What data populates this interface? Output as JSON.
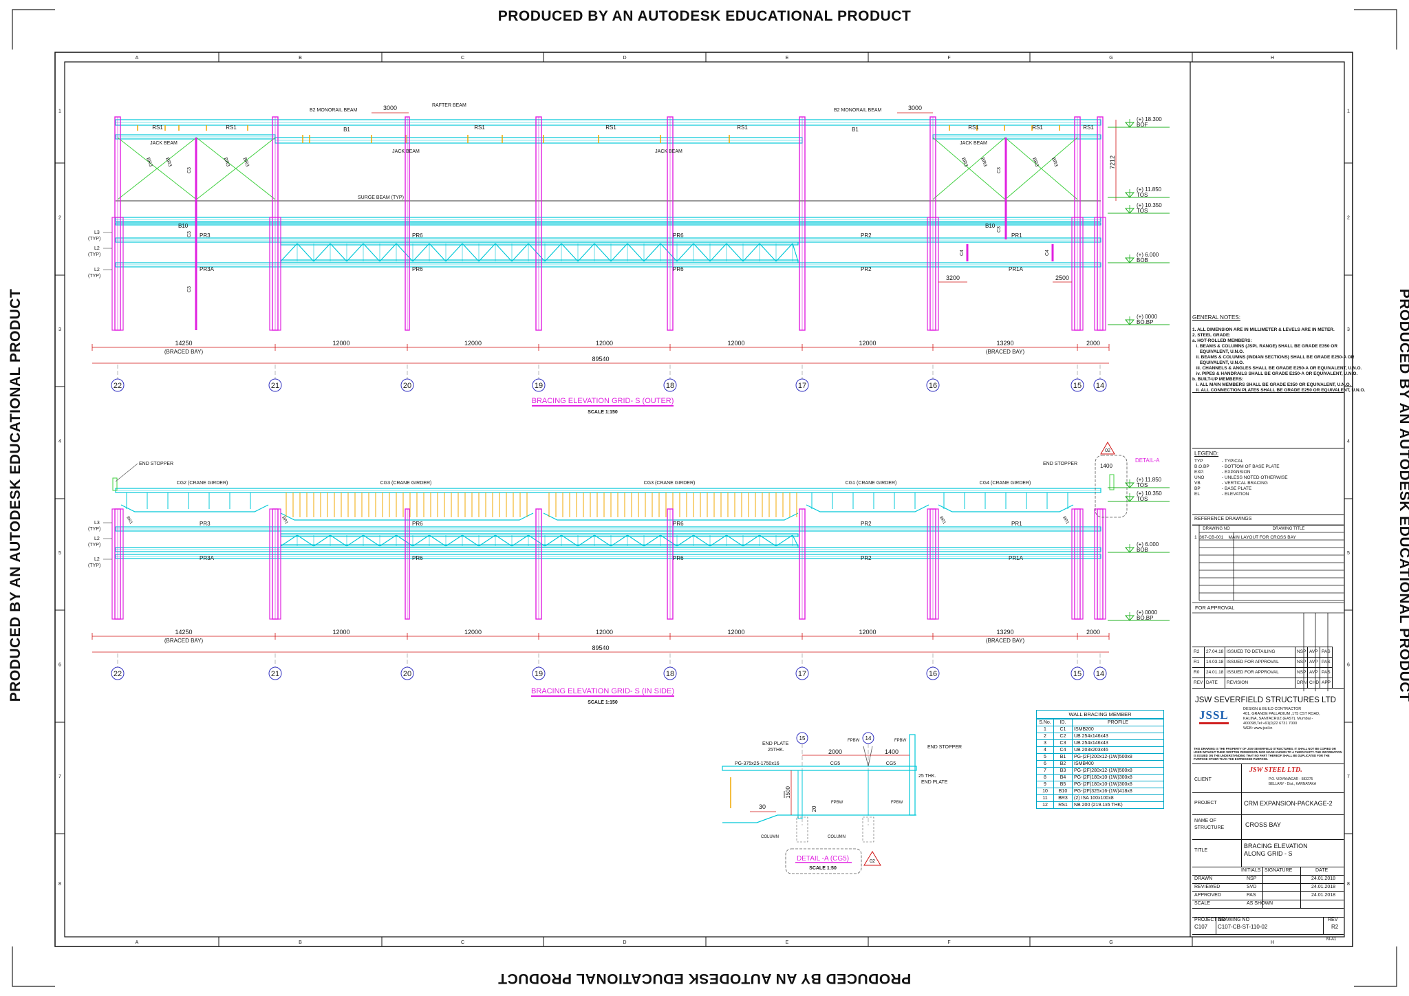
{
  "watermark": "PRODUCED BY AN AUTODESK EDUCATIONAL PRODUCT",
  "grid_columns": [
    "A",
    "B",
    "C",
    "D",
    "E",
    "F",
    "G",
    "H"
  ],
  "grid_rows": [
    "1",
    "2",
    "3",
    "4",
    "5",
    "6",
    "7",
    "8"
  ],
  "colors": {
    "column": "#e020e0",
    "beam": "#00c8d8",
    "bracing": "#40d040",
    "stiffener": "#f0a800",
    "dim": "#d01010",
    "level": "#20b020"
  },
  "elev_outer": {
    "title": "BRACING ELEVATION GRID- S (OUTER)",
    "scale": "SCALE 1:150",
    "labels": {
      "b2_left": "B2 MONORAIL BEAM",
      "rafter": "RAFTER BEAM",
      "b2_right": "B2 MONORAIL BEAM",
      "dim3000": "3000",
      "rs1": "RS1",
      "b1": "B1",
      "jack": "JACK BEAM",
      "br3": "BR3",
      "c3": "C3",
      "surge": "SURGE BEAM (TYP)",
      "b10": "B10",
      "pr3": "PR3",
      "pr6": "PR6",
      "pr2": "PR2",
      "pr1": "PR1",
      "pr3a": "PR3A",
      "pr1a": "PR1A",
      "c4": "C4",
      "d3200": "3200",
      "d2500": "2500",
      "d7212": "7212",
      "l3": "L3",
      "l2": "L2",
      "typ": "(TYP)"
    },
    "levels": [
      {
        "val": "(+) 18.300",
        "tag": "BOF"
      },
      {
        "val": "(+) 11.850",
        "tag": "TOS"
      },
      {
        "val": "(+) 10.350",
        "tag": "TOS"
      },
      {
        "val": "(+) 6.000",
        "tag": "BOB"
      },
      {
        "val": "(+) 0000",
        "tag": "BO.BP"
      }
    ]
  },
  "elev_inside": {
    "title": "BRACING ELEVATION GRID- S (IN SIDE)",
    "scale": "SCALE 1:150",
    "labels": {
      "end_stopper": "END STOPPER",
      "cg2": "CG2 (CRANE GIRDER)",
      "cg3": "CG3 (CRANE GIRDER)",
      "cg1": "CG1 (CRANE GIRDER)",
      "cg4": "CG4 (CRANE GIRDER)",
      "detail": "DETAIL-A",
      "d1400": "1400",
      "ref02": "02"
    },
    "levels": [
      {
        "val": "(+) 11.850",
        "tag": "TOS"
      },
      {
        "val": "(+) 10.350",
        "tag": "TOS"
      },
      {
        "val": "(+) 6.000",
        "tag": "BOB"
      },
      {
        "val": "(+) 0000",
        "tag": "BO.BP"
      }
    ]
  },
  "bay_dims": [
    "14250",
    "12000",
    "12000",
    "12000",
    "12000",
    "12000",
    "13290",
    "2000"
  ],
  "braced_bay": "(BRACED  BAY)",
  "total_dim": "89540",
  "grid_bubbles": [
    "22",
    "21",
    "20",
    "19",
    "18",
    "17",
    "16",
    "15",
    "14"
  ],
  "detail_a": {
    "title": "DETAIL -A (CG5)",
    "scale": "SCALE 1:50",
    "ref": "02",
    "labels": {
      "end_plate": "END PLATE",
      "thk": "25THK.",
      "pg": "PG-375x25-1750x16",
      "cg5": "CG5",
      "fpbw": "FPBW",
      "end_stopper": "END STOPPER",
      "thk2": "25 THK.",
      "end_plate2": "END PLATE",
      "column": "COLUMN",
      "d2000": "2000",
      "d1400": "1400",
      "d1500": "1500",
      "d30": "30",
      "d20": "20",
      "g15": "15",
      "g14": "14"
    }
  },
  "wall_bracing": {
    "title": "WALL BRACING MEMBER",
    "headers": [
      "S.No.",
      "ID.",
      "PROFILE"
    ],
    "rows": [
      [
        "1",
        "C1",
        "ISMB200"
      ],
      [
        "2",
        "C2",
        "UB 254x146x43"
      ],
      [
        "3",
        "C3",
        "UB 254x146x43"
      ],
      [
        "4",
        "C4",
        "UB 203x203x46"
      ],
      [
        "5",
        "B1",
        "PG-(2F)200x12-(1W)500x8"
      ],
      [
        "6",
        "B2",
        "ISMB400"
      ],
      [
        "7",
        "B3",
        "PG-(2F)280x12-(1W)500x8"
      ],
      [
        "8",
        "B4",
        "PG-(2F)180x10-(1W)300x8"
      ],
      [
        "9",
        "B5",
        "PG-(2F)180x10-(1W)300x8"
      ],
      [
        "10",
        "B10",
        "PG-(2F)325x16-(1W)418x8"
      ],
      [
        "11",
        "BR3",
        "(2) ISA 100x100x8"
      ],
      [
        "12",
        "RS1",
        "NB 200 (219.1x6 THK)"
      ]
    ]
  },
  "general_notes": {
    "title": "GENERAL NOTES:",
    "lines": [
      "1. ALL DIMENSION ARE IN MILLIMETER & LEVELS ARE IN METER.",
      "2. STEEL GRADE:",
      "a. HOT-ROLLED MEMBERS:",
      "   i. BEAMS & COLUMNS (JSPL RANGE) SHALL BE GRADE E350 OR",
      "      EQUIVALENT, U.N.O.",
      "   ii. BEAMS & COLUMNS (INDIAN SECTIONS) SHALL BE GRADE E250-A OR",
      "      EQUIVALENT, U.N.O.",
      "   iii. CHANNELS & ANGLES SHALL BE GRADE E250-A OR EQUIVALENT, U.N.O.",
      "   iv. PIPES & HANDRAILS SHALL BE GRADE E250-A OR EQUIVALENT, U.N.O.",
      "b. BUILT-UP MEMBERS:",
      "   i. ALL MAIN MEMBERS SHALL BE GRADE E350 OR EQUIVALENT, U.N.O.",
      "   ii. ALL CONNECTION PLATES SHALL BE GRADE E250 OR EQUIVALENT, U.N.O."
    ]
  },
  "legend": {
    "title": "LEGEND:",
    "items": [
      [
        "TYP",
        "- TYPICAL"
      ],
      [
        "B.O.BP",
        "- BOTTOM OF BASE PLATE"
      ],
      [
        "EXP.",
        "- EXPANSION"
      ],
      [
        "UNO",
        "- UNLESS NOTED OTHERWISE"
      ],
      [
        "VB",
        "- VERTICAL BRACING"
      ],
      [
        "BP",
        "- BASE PLATE"
      ],
      [
        "EL",
        "- ELEVATION"
      ]
    ]
  },
  "reference": {
    "title": "REFERENCE DRAWINGS",
    "headers": [
      "DRAWING NO",
      "DRAWING TITLE"
    ],
    "rows": [
      [
        "1",
        "367-CB-001",
        "MAIN LAYOUT FOR CROSS BAY"
      ]
    ]
  },
  "for_approval": "FOR APPROVAL",
  "revisions": {
    "rows": [
      [
        "R2",
        "27.04.18",
        "ISSUED TO DETAILING",
        "NSP",
        "AVP",
        "PAS"
      ],
      [
        "R1",
        "14.03.18",
        "ISSUED FOR APPROVAL",
        "NSP",
        "AVP",
        "PAS"
      ],
      [
        "R0",
        "24.01.18",
        "ISSUED FOR APPROVAL",
        "NSP",
        "AVP",
        "PAS"
      ]
    ],
    "headers": [
      "REV",
      "DATE",
      "REVISION",
      "DRN",
      "CHD",
      "APP"
    ]
  },
  "company": {
    "name": "JSW SEVERFIELD STRUCTURES LTD",
    "logo": "JSSL",
    "addr": [
      "DESIGN & BUILD CONTRACTOR",
      "401, GRANDE PALLADIUM ,175 CST ROAD,",
      "KALINA, SANTACRUZ (EAST). Mumbai -",
      "400098,Tel:+91(0)22 6731 7000",
      "WEB: www.jssl.in"
    ],
    "notice": "THIS DRAWING IS THE PROPERTY OF JSW SEVERFIELD STRUCTURES. IT SHALL NOT BE COPIED OR USED WITHOUT THEIR WRITTEN PERMISSION NOR MADE KNOWN TO A THIRD PARTY. THE INFORMATION IS ISSUED ON THE UNDERSTANDING THAT NO PART THEREOF SHALL BE DUPLICATED FOR THE PURPOSE OTHER THAN THE EXPRESSED PURPOSE."
  },
  "client": {
    "label": "CLIENT",
    "logo": "JSW STEEL LTD.",
    "addr": [
      "P.O. VIDYANAGAR - 583275",
      "BELLARY - Dist., KARNATAKA"
    ]
  },
  "project": {
    "label": "PROJECT",
    "value": "CRM EXPANSION-PACKAGE-2"
  },
  "structure": {
    "label1": "NAME OF",
    "label2": "STRUCTURE",
    "value": "CROSS BAY"
  },
  "title_blk": {
    "label": "TITLE",
    "value1": "BRACING ELEVATION",
    "value2": "ALONG GRID - S"
  },
  "sign_headers": [
    "INITIALS",
    "SIGNATURE",
    "DATE"
  ],
  "signoff": [
    [
      "DRAWN",
      "NSP",
      "24.01.2018"
    ],
    [
      "REVIEWED",
      "SVD",
      "24.01.2018"
    ],
    [
      "APPROVED",
      "PAS",
      "24.01.2018"
    ]
  ],
  "scale": {
    "label": "SCALE",
    "value": "AS SHOWN"
  },
  "project_no": {
    "label": "PROJECT NO",
    "value": "C107"
  },
  "drawing_no": {
    "label": "DRAWING NO",
    "value": "C107-CB-ST-110-02"
  },
  "rev": {
    "label": "REV",
    "value": "R2"
  },
  "sheet": "M-A1"
}
